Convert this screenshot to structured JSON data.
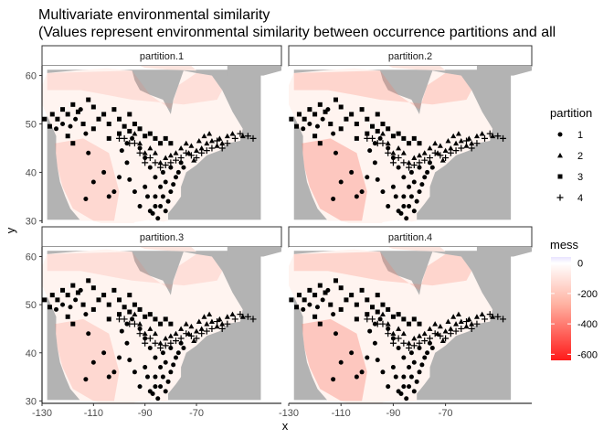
{
  "chart_data": {
    "type": "faceted-raster-scatter",
    "title": "Multivariate environmental similarity",
    "subtitle": "(Values represent environmental similarity between occurrence partitions and all",
    "xlabel": "x",
    "ylabel": "y",
    "xlim": [
      -130,
      -37
    ],
    "ylim": [
      29.5,
      62
    ],
    "x_ticks": [
      -130,
      -110,
      -90,
      -70
    ],
    "y_ticks": [
      30,
      40,
      50,
      60
    ],
    "facets": [
      {
        "name": "partition.1",
        "dissimilarity": 0.25
      },
      {
        "name": "partition.2",
        "dissimilarity": 0.6
      },
      {
        "name": "partition.3",
        "dissimilarity": 0.25
      },
      {
        "name": "partition.4",
        "dissimilarity": 0.6
      }
    ],
    "fill_legend": {
      "title": "mess",
      "ticks": [
        0,
        -200,
        -400,
        -600
      ],
      "range": [
        -640,
        40
      ],
      "colors": {
        "low": "#ff1a1a",
        "mid": "#ffffff",
        "high": "#e9e3ff"
      }
    },
    "shape_legend": {
      "title": "partition",
      "items": [
        {
          "label": "1",
          "shape": "circle"
        },
        {
          "label": "2",
          "shape": "triangle"
        },
        {
          "label": "3",
          "shape": "square"
        },
        {
          "label": "4",
          "shape": "plus"
        }
      ]
    },
    "occurrences": [
      {
        "partition": 1,
        "points": [
          [
            -124.5,
            49
          ],
          [
            -122,
            50
          ],
          [
            -119,
            49.5
          ],
          [
            -117,
            51
          ],
          [
            -115,
            53
          ],
          [
            -113,
            48
          ],
          [
            -112,
            44
          ],
          [
            -110,
            38
          ],
          [
            -113,
            34.5
          ],
          [
            -106,
            40
          ],
          [
            -104,
            35
          ],
          [
            -102,
            36
          ],
          [
            -100,
            39
          ],
          [
            -97,
            42
          ],
          [
            -96,
            38.5
          ],
          [
            -94,
            36
          ],
          [
            -92,
            33
          ],
          [
            -90,
            37
          ],
          [
            -89,
            35
          ],
          [
            -88,
            32
          ],
          [
            -87,
            31.5
          ],
          [
            -86,
            33
          ],
          [
            -85,
            30.5
          ],
          [
            -84,
            33
          ],
          [
            -83,
            35
          ],
          [
            -82,
            32
          ],
          [
            -81,
            34
          ],
          [
            -80,
            36
          ],
          [
            -79,
            37.5
          ],
          [
            -78,
            39
          ],
          [
            -77,
            40
          ],
          [
            -76,
            42
          ],
          [
            -75,
            41
          ],
          [
            -80,
            41
          ],
          [
            -83,
            40
          ],
          [
            -86,
            39
          ],
          [
            -88,
            41
          ],
          [
            -90,
            43
          ],
          [
            -92,
            45
          ],
          [
            -95,
            47
          ],
          [
            -97,
            46
          ],
          [
            -99,
            44.5
          ],
          [
            -86,
            35
          ],
          [
            -84,
            37
          ],
          [
            -82,
            38
          ]
        ]
      },
      {
        "partition": 2,
        "points": [
          [
            -66,
            46
          ],
          [
            -64,
            46.5
          ],
          [
            -62,
            45.5
          ],
          [
            -60,
            46
          ],
          [
            -68,
            45
          ],
          [
            -70,
            44.5
          ],
          [
            -72,
            45.5
          ],
          [
            -74,
            46
          ],
          [
            -76,
            45
          ],
          [
            -78,
            44
          ],
          [
            -80,
            43.5
          ],
          [
            -82,
            43
          ],
          [
            -84,
            42
          ],
          [
            -86,
            44
          ],
          [
            -88,
            45
          ],
          [
            -90,
            44
          ],
          [
            -92,
            46
          ],
          [
            -94,
            48
          ],
          [
            -73,
            44
          ],
          [
            -71,
            42.5
          ],
          [
            -69,
            46.5
          ],
          [
            -67,
            47.5
          ],
          [
            -65,
            48
          ],
          [
            -61,
            47
          ],
          [
            -58,
            47.5
          ],
          [
            -56,
            48
          ],
          [
            -52,
            47.5
          ]
        ]
      },
      {
        "partition": 3,
        "points": [
          [
            -129,
            51
          ],
          [
            -127,
            49.5
          ],
          [
            -126,
            52
          ],
          [
            -124,
            51
          ],
          [
            -122,
            53
          ],
          [
            -120,
            52
          ],
          [
            -118,
            54
          ],
          [
            -116,
            52.5
          ],
          [
            -114,
            50
          ],
          [
            -112,
            55
          ],
          [
            -110,
            53.5
          ],
          [
            -108,
            51
          ],
          [
            -106,
            52
          ],
          [
            -104,
            50
          ],
          [
            -102,
            53
          ],
          [
            -100,
            51
          ],
          [
            -98,
            49.5
          ],
          [
            -96,
            52
          ],
          [
            -94,
            50
          ],
          [
            -92,
            49
          ],
          [
            -90,
            47.5
          ],
          [
            -88,
            48
          ],
          [
            -86,
            47
          ],
          [
            -84,
            46
          ],
          [
            -82,
            47
          ],
          [
            -80,
            46
          ],
          [
            -118,
            46
          ],
          [
            -120,
            47.5
          ],
          [
            -110,
            49
          ],
          [
            -104,
            47
          ],
          [
            -100,
            48
          ],
          [
            -96,
            48.5
          ]
        ]
      },
      {
        "partition": 4,
        "points": [
          [
            -58,
            46
          ],
          [
            -60,
            45
          ],
          [
            -62,
            46.5
          ],
          [
            -55,
            47
          ],
          [
            -53,
            48
          ],
          [
            -50,
            47.5
          ],
          [
            -48,
            47
          ],
          [
            -64,
            45
          ],
          [
            -66,
            44.5
          ],
          [
            -68,
            44
          ],
          [
            -70,
            43
          ],
          [
            -72,
            43.5
          ],
          [
            -74,
            44
          ],
          [
            -76,
            43
          ],
          [
            -78,
            42.5
          ],
          [
            -80,
            42
          ],
          [
            -82,
            41.5
          ],
          [
            -84,
            41
          ],
          [
            -86,
            42
          ],
          [
            -88,
            43
          ],
          [
            -90,
            42
          ],
          [
            -92,
            44
          ],
          [
            -94,
            46
          ],
          [
            -96,
            46
          ],
          [
            -98,
            47
          ],
          [
            -100,
            47
          ]
        ]
      }
    ]
  }
}
